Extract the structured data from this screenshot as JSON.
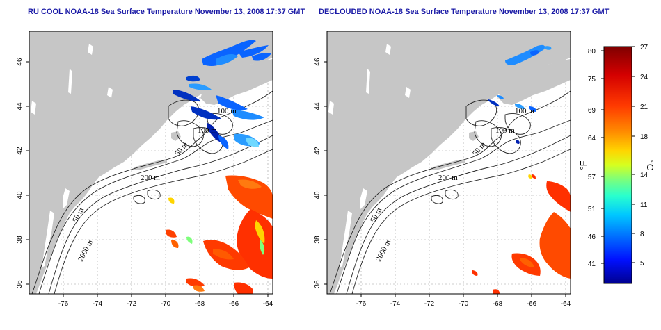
{
  "panels": [
    {
      "id": "left",
      "title": "RU COOL NOAA-18 Sea Surface Temperature November 13, 2008 17:37 GMT",
      "x_ticks": [
        "-76",
        "-74",
        "-72",
        "-70",
        "-68",
        "-66",
        "-64"
      ],
      "y_ticks": [
        "36",
        "38",
        "40",
        "42",
        "44",
        "46"
      ],
      "contour_labels": [
        "100 m",
        "100 m",
        "50 m",
        "200 m",
        "50 m",
        "2000 m"
      ]
    },
    {
      "id": "right",
      "title": "DECLOUDED NOAA-18 Sea Surface Temperature November 13, 2008 17:37 GMT",
      "x_ticks": [
        "-76",
        "-74",
        "-72",
        "-70",
        "-68",
        "-66",
        "-64"
      ],
      "y_ticks": [
        "36",
        "38",
        "40",
        "42",
        "44",
        "46"
      ],
      "contour_labels": [
        "100 m",
        "100 m",
        "50 m",
        "200 m",
        "50 m",
        "2000 m"
      ]
    }
  ],
  "colorbar": {
    "fahrenheit_unit": "°F",
    "celsius_unit": "°C",
    "fahrenheit_ticks": [
      "80",
      "75",
      "69",
      "64",
      "57",
      "51",
      "46",
      "41"
    ],
    "celsius_ticks": [
      "27",
      "24",
      "21",
      "18",
      "14",
      "11",
      "8",
      "5"
    ],
    "colors": [
      "#7f0000",
      "#d40000",
      "#ff3a00",
      "#ff8c00",
      "#ffd500",
      "#d6ff1f",
      "#7dff7a",
      "#29ffce",
      "#00c8ff",
      "#0070ff",
      "#0010ff",
      "#00008f"
    ]
  },
  "colors": {
    "land": "#c6c6c6",
    "ocean": "#ffffff",
    "title": "#1a1aa6",
    "grid": "#9a9a9a"
  }
}
